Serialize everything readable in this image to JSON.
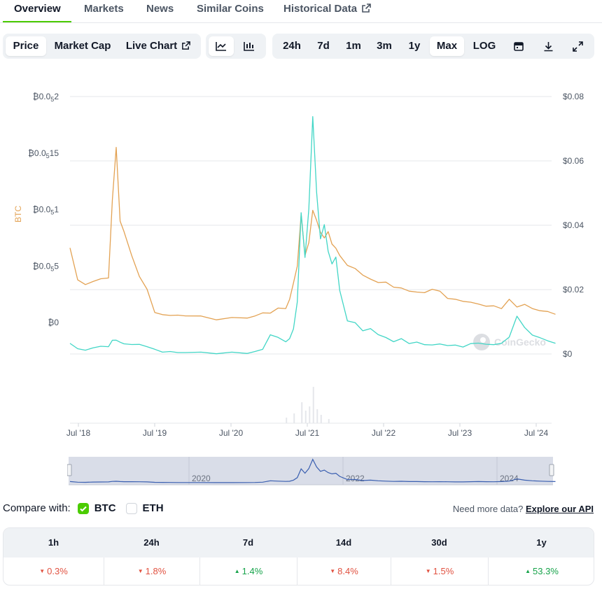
{
  "tabs": {
    "overview": "Overview",
    "markets": "Markets",
    "news": "News",
    "similar": "Similar Coins",
    "historical": "Historical Data"
  },
  "toolbar": {
    "price": "Price",
    "market_cap": "Market Cap",
    "live_chart": "Live Chart",
    "ranges": [
      "24h",
      "7d",
      "1m",
      "3m",
      "1y",
      "Max"
    ],
    "active_range": "Max",
    "log": "LOG"
  },
  "chart_data": {
    "type": "line",
    "x_ticks": [
      "Jul '18",
      "Jul '19",
      "Jul '20",
      "Jul '21",
      "Jul '22",
      "Jul '23",
      "Jul '24"
    ],
    "y_left_label": "BTC",
    "y_left_ticks": [
      {
        "prefix": "₿0.0",
        "sub": "5",
        "suffix": "2"
      },
      {
        "prefix": "₿0.0",
        "sub": "5",
        "suffix": "15"
      },
      {
        "prefix": "₿0.0",
        "sub": "5",
        "suffix": "1"
      },
      {
        "prefix": "₿0.0",
        "sub": "5",
        "suffix": "5"
      },
      {
        "prefix": "₿0",
        "sub": "",
        "suffix": ""
      }
    ],
    "y_right_ticks": [
      "$0.08",
      "$0.06",
      "$0.04",
      "$0.02",
      "$0"
    ],
    "y_right_range": [
      0,
      0.08
    ],
    "watermark": "CoinGecko",
    "series": [
      {
        "color": "#e3a253",
        "axis": "left",
        "x": [
          2018.5,
          2018.6,
          2018.7,
          2018.8,
          2018.9,
          2019.0,
          2019.05,
          2019.1,
          2019.15,
          2019.2,
          2019.3,
          2019.4,
          2019.5,
          2019.6,
          2019.7,
          2019.8,
          2019.9,
          2020.0,
          2020.2,
          2020.4,
          2020.6,
          2020.8,
          2020.9,
          2021.0,
          2021.1,
          2021.2,
          2021.3,
          2021.35,
          2021.4,
          2021.45,
          2021.5,
          2021.55,
          2021.6,
          2021.65,
          2021.7,
          2021.75,
          2021.8,
          2021.85,
          2021.9,
          2021.95,
          2022.0,
          2022.1,
          2022.2,
          2022.3,
          2022.4,
          2022.5,
          2022.6,
          2022.7,
          2022.8,
          2022.9,
          2023.0,
          2023.1,
          2023.2,
          2023.3,
          2023.4,
          2023.5,
          2023.6,
          2023.7,
          2023.8,
          2023.9,
          2024.0,
          2024.1,
          2024.2,
          2024.3,
          2024.4,
          2024.5,
          2024.6,
          2024.7,
          2024.8
        ],
        "y": [
          0.066,
          0.038,
          0.033,
          0.037,
          0.038,
          0.04,
          0.108,
          0.155,
          0.09,
          0.08,
          0.06,
          0.04,
          0.03,
          0.0085,
          0.007,
          0.0065,
          0.006,
          0.0065,
          0.005,
          0.003,
          0.004,
          0.004,
          0.006,
          0.008,
          0.009,
          0.012,
          0.013,
          0.02,
          0.035,
          0.05,
          0.095,
          0.06,
          0.07,
          0.1,
          0.09,
          0.08,
          0.075,
          0.08,
          0.07,
          0.065,
          0.06,
          0.05,
          0.048,
          0.042,
          0.038,
          0.036,
          0.035,
          0.032,
          0.03,
          0.028,
          0.027,
          0.026,
          0.03,
          0.027,
          0.022,
          0.02,
          0.019,
          0.018,
          0.016,
          0.015,
          0.014,
          0.013,
          0.02,
          0.014,
          0.016,
          0.012,
          0.011,
          0.009,
          0.008
        ]
      },
      {
        "color": "#42d6c6",
        "axis": "right",
        "x": [
          2018.5,
          2018.6,
          2018.7,
          2018.8,
          2018.9,
          2019.0,
          2019.05,
          2019.1,
          2019.15,
          2019.2,
          2019.3,
          2019.4,
          2019.5,
          2019.6,
          2019.7,
          2019.8,
          2019.9,
          2020.0,
          2020.2,
          2020.4,
          2020.6,
          2020.8,
          2020.9,
          2021.0,
          2021.1,
          2021.2,
          2021.3,
          2021.35,
          2021.4,
          2021.45,
          2021.5,
          2021.55,
          2021.6,
          2021.65,
          2021.7,
          2021.75,
          2021.8,
          2021.85,
          2021.9,
          2021.95,
          2022.0,
          2022.1,
          2022.2,
          2022.3,
          2022.4,
          2022.5,
          2022.6,
          2022.7,
          2022.8,
          2022.9,
          2023.0,
          2023.1,
          2023.2,
          2023.3,
          2023.4,
          2023.5,
          2023.6,
          2023.7,
          2023.8,
          2023.9,
          2024.0,
          2024.1,
          2024.2,
          2024.3,
          2024.4,
          2024.5,
          2024.6,
          2024.7,
          2024.8
        ],
        "y": [
          0.0035,
          0.0015,
          0.0012,
          0.002,
          0.0022,
          0.0025,
          0.004,
          0.0045,
          0.0035,
          0.0032,
          0.003,
          0.0028,
          0.0025,
          0.0012,
          0.0008,
          0.0006,
          0.0005,
          0.0005,
          0.0004,
          0.0003,
          0.0003,
          0.0004,
          0.0006,
          0.0015,
          0.006,
          0.005,
          0.004,
          0.0045,
          0.008,
          0.016,
          0.044,
          0.03,
          0.045,
          0.074,
          0.05,
          0.036,
          0.04,
          0.032,
          0.028,
          0.03,
          0.02,
          0.01,
          0.01,
          0.007,
          0.008,
          0.006,
          0.005,
          0.004,
          0.0045,
          0.0035,
          0.0035,
          0.003,
          0.0028,
          0.003,
          0.0028,
          0.0025,
          0.0024,
          0.003,
          0.0035,
          0.003,
          0.0028,
          0.0035,
          0.005,
          0.012,
          0.008,
          0.006,
          0.005,
          0.004,
          0.0035
        ]
      }
    ]
  },
  "navigator": {
    "labels": [
      "2020",
      "2022",
      "2024"
    ]
  },
  "compare": {
    "label": "Compare with:",
    "options": [
      {
        "name": "BTC",
        "checked": true
      },
      {
        "name": "ETH",
        "checked": false
      }
    ],
    "more_text": "Need more data?",
    "more_link": "Explore our API"
  },
  "performance": {
    "headers": [
      "1h",
      "24h",
      "7d",
      "14d",
      "30d",
      "1y"
    ],
    "values": [
      {
        "text": "0.3%",
        "dir": "down"
      },
      {
        "text": "1.8%",
        "dir": "down"
      },
      {
        "text": "1.4%",
        "dir": "up"
      },
      {
        "text": "8.4%",
        "dir": "down"
      },
      {
        "text": "1.5%",
        "dir": "down"
      },
      {
        "text": "53.3%",
        "dir": "up"
      }
    ]
  },
  "colors": {
    "accent": "#4bcc00",
    "btc_line": "#e3a253",
    "price_line": "#42d6c6",
    "down": "#e15241",
    "up": "#16a34a"
  }
}
